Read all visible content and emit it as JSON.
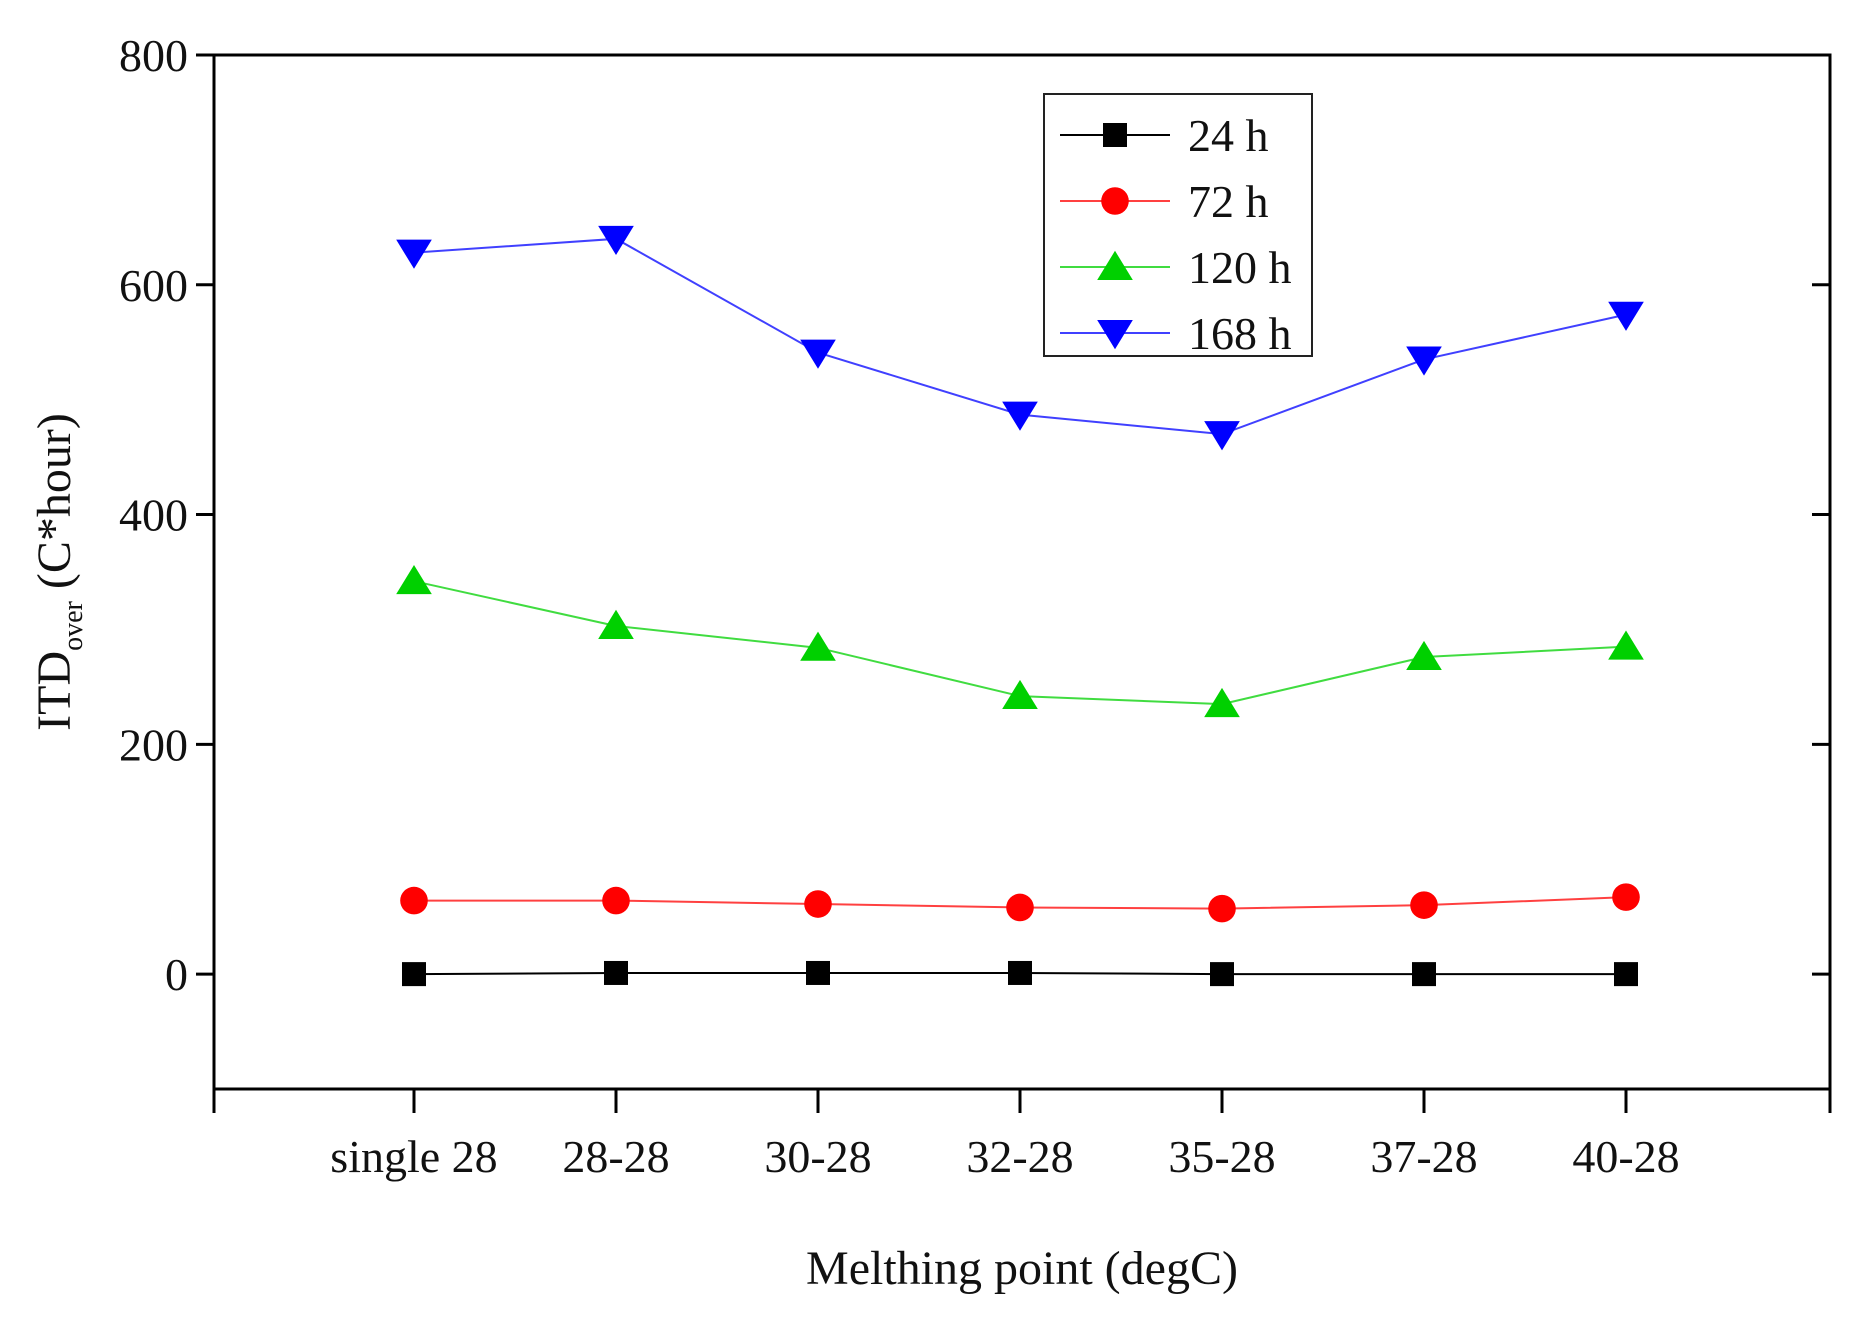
{
  "chart_data": {
    "type": "line",
    "title": "",
    "xlabel": "Melthing point (degC)",
    "ylabel_main": "ITD",
    "ylabel_sub": "over",
    "ylabel_unit": " (C*hour)",
    "categories": [
      "single 28",
      "28-28",
      "30-28",
      "32-28",
      "35-28",
      "37-28",
      "40-28"
    ],
    "ylim": [
      -100,
      800
    ],
    "yticks": [
      0,
      200,
      400,
      600,
      800
    ],
    "legend_position": "top-right",
    "grid": false,
    "series": [
      {
        "name": "24 h",
        "color": "#000000",
        "marker": "square",
        "values": [
          0,
          1,
          1,
          1,
          0,
          0,
          0
        ]
      },
      {
        "name": "72 h",
        "color": "#ff0000",
        "marker": "circle",
        "values": [
          64,
          64,
          61,
          58,
          57,
          60,
          67
        ]
      },
      {
        "name": "120 h",
        "color": "#00d000",
        "marker": "triangle-up",
        "values": [
          342,
          303,
          284,
          242,
          235,
          276,
          285
        ]
      },
      {
        "name": "168 h",
        "color": "#0000ff",
        "marker": "triangle-down",
        "values": [
          628,
          640,
          541,
          487,
          470,
          535,
          574
        ]
      }
    ]
  }
}
